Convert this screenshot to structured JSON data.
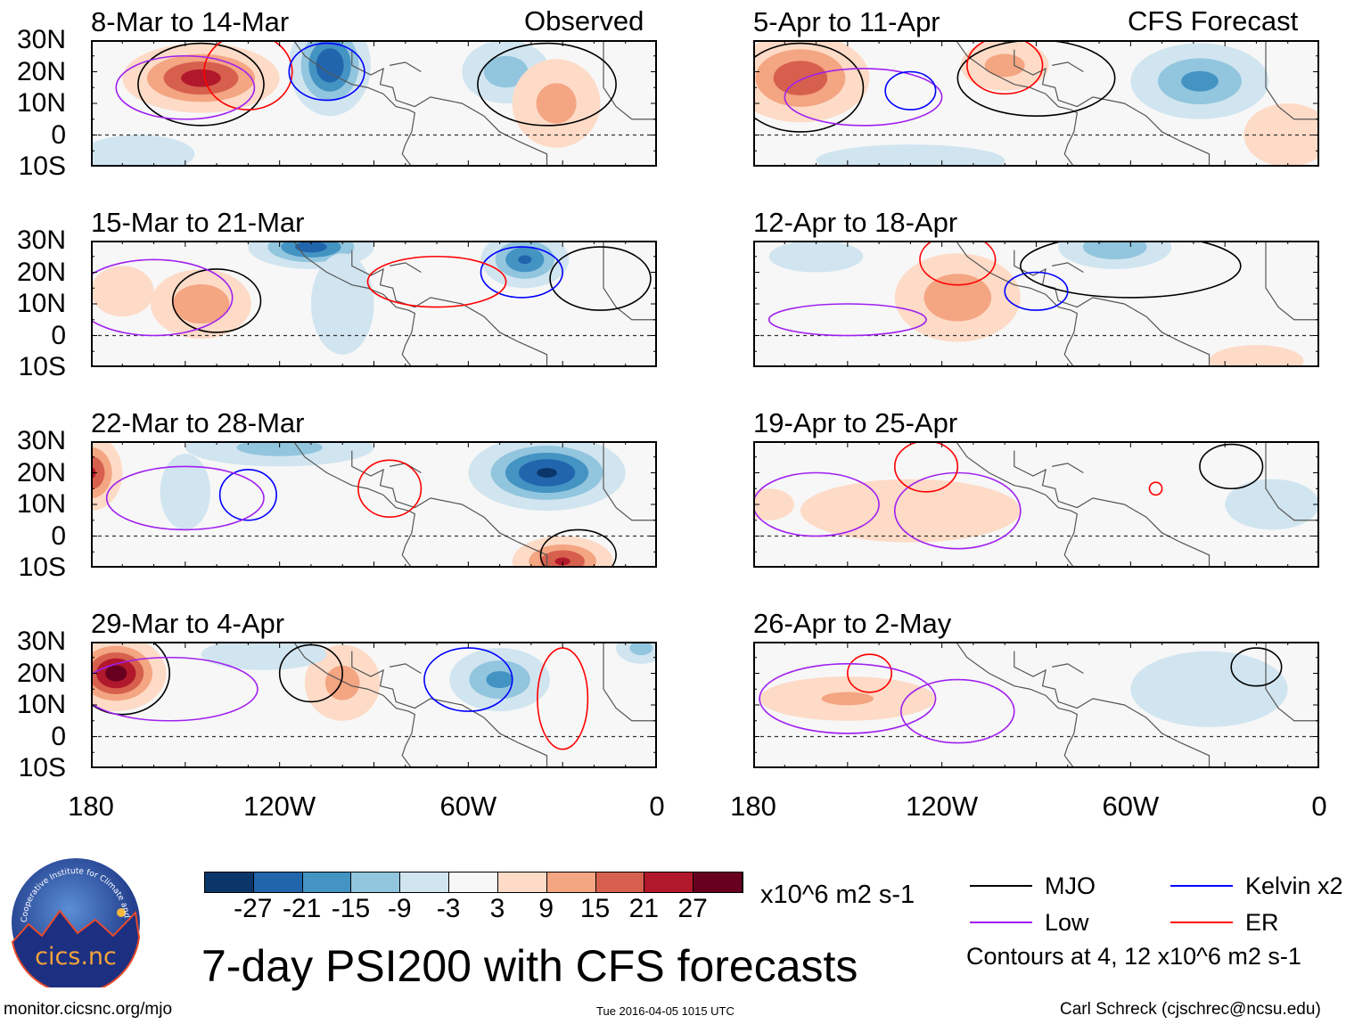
{
  "header": {
    "observed_label": "Observed",
    "forecast_label": "CFS Forecast"
  },
  "axes": {
    "lat_labels": [
      "30N",
      "20N",
      "10N",
      "0",
      "10S"
    ],
    "lat_values": [
      30,
      20,
      10,
      0,
      -10
    ],
    "lon_labels": [
      "180",
      "120W",
      "60W",
      "0"
    ],
    "lon_values": [
      -180,
      -120,
      -60,
      0
    ]
  },
  "colorbar": {
    "colors": [
      "#0b3669",
      "#2166ac",
      "#4393c3",
      "#92c5de",
      "#d1e5f0",
      "#f7f7f7",
      "#fddbc7",
      "#f4a582",
      "#d6604d",
      "#b2182b",
      "#67001f"
    ],
    "labels": [
      "-27",
      "-21",
      "-15",
      "-9",
      "-3",
      "3",
      "9",
      "15",
      "21",
      "27"
    ],
    "units": "x10^6 m2 s-1"
  },
  "legend": {
    "items": [
      {
        "label": "MJO",
        "color": "#000000"
      },
      {
        "label": "Kelvin x2",
        "color": "#0000ff"
      },
      {
        "label": "Low",
        "color": "#a020f0"
      },
      {
        "label": "ER",
        "color": "#ff0000"
      }
    ],
    "note": "Contours at 4, 12 x10^6 m2 s-1"
  },
  "footer": {
    "title": "7-day PSI200 with CFS forecasts",
    "url": "monitor.cicsnc.org/mjo",
    "timestamp": "Tue 2016-04-05 1015 UTC",
    "author": "Carl Schreck (cjschrec@ncsu.edu)",
    "logo_text": "cics.nc",
    "logo_ring": "Cooperative Institute for Climate and Satellites"
  },
  "chart_data": [
    {
      "type": "heatmap",
      "title": "8-Mar to 14-Mar",
      "kind": "Observed",
      "anomalies": [
        {
          "lon": -145,
          "lat": 18,
          "rx": 25,
          "ry": 11,
          "v": 24
        },
        {
          "lon": -104,
          "lat": 22,
          "rx": 13,
          "ry": 16,
          "v": -27
        },
        {
          "lon": -48,
          "lat": 20,
          "rx": 14,
          "ry": 10,
          "v": -13
        },
        {
          "lon": -32,
          "lat": 10,
          "rx": 14,
          "ry": 14,
          "v": 12
        },
        {
          "lon": -165,
          "lat": -6,
          "rx": 18,
          "ry": 6,
          "v": -6
        }
      ],
      "contours": [
        {
          "t": "MJO",
          "lon": -145,
          "lat": 16,
          "rx": 20,
          "ry": 13
        },
        {
          "t": "MJO",
          "lon": -35,
          "lat": 16,
          "rx": 22,
          "ry": 13
        },
        {
          "t": "ER",
          "lon": -130,
          "lat": 20,
          "rx": 14,
          "ry": 12
        },
        {
          "t": "Low",
          "lon": -150,
          "lat": 15,
          "rx": 22,
          "ry": 10
        },
        {
          "t": "Kelvin",
          "lon": -105,
          "lat": 20,
          "rx": 12,
          "ry": 9
        }
      ]
    },
    {
      "type": "heatmap",
      "title": "5-Apr to 11-Apr",
      "kind": "CFS Forecast",
      "anomalies": [
        {
          "lon": -165,
          "lat": 18,
          "rx": 22,
          "ry": 14,
          "v": 20
        },
        {
          "lon": -100,
          "lat": 22,
          "rx": 14,
          "ry": 8,
          "v": 12
        },
        {
          "lon": -38,
          "lat": 17,
          "rx": 22,
          "ry": 12,
          "v": -17
        },
        {
          "lon": -130,
          "lat": -8,
          "rx": 30,
          "ry": 5,
          "v": -5
        },
        {
          "lon": -10,
          "lat": 0,
          "rx": 14,
          "ry": 10,
          "v": 6
        }
      ],
      "contours": [
        {
          "t": "MJO",
          "lon": -165,
          "lat": 15,
          "rx": 20,
          "ry": 14
        },
        {
          "t": "MJO",
          "lon": -90,
          "lat": 18,
          "rx": 25,
          "ry": 12
        },
        {
          "t": "Low",
          "lon": -145,
          "lat": 12,
          "rx": 25,
          "ry": 9
        },
        {
          "t": "Kelvin",
          "lon": -130,
          "lat": 14,
          "rx": 8,
          "ry": 6
        },
        {
          "t": "ER",
          "lon": -100,
          "lat": 22,
          "rx": 12,
          "ry": 9
        }
      ]
    },
    {
      "type": "heatmap",
      "title": "15-Mar to 21-Mar",
      "kind": "Observed",
      "anomalies": [
        {
          "lon": -145,
          "lat": 10,
          "rx": 16,
          "ry": 11,
          "v": 15
        },
        {
          "lon": -110,
          "lat": 28,
          "rx": 20,
          "ry": 7,
          "v": -24
        },
        {
          "lon": -42,
          "lat": 24,
          "rx": 14,
          "ry": 9,
          "v": -22
        },
        {
          "lon": -100,
          "lat": 10,
          "rx": 10,
          "ry": 16,
          "v": -8
        },
        {
          "lon": -170,
          "lat": 14,
          "rx": 10,
          "ry": 8,
          "v": 6
        }
      ],
      "contours": [
        {
          "t": "MJO",
          "lon": -140,
          "lat": 11,
          "rx": 14,
          "ry": 10
        },
        {
          "t": "MJO",
          "lon": -18,
          "lat": 18,
          "rx": 16,
          "ry": 10
        },
        {
          "t": "Kelvin",
          "lon": -43,
          "lat": 20,
          "rx": 13,
          "ry": 8
        },
        {
          "t": "ER",
          "lon": -70,
          "lat": 17,
          "rx": 22,
          "ry": 8
        },
        {
          "t": "Low",
          "lon": -160,
          "lat": 12,
          "rx": 25,
          "ry": 12
        }
      ]
    },
    {
      "type": "heatmap",
      "title": "12-Apr to 18-Apr",
      "kind": "CFS Forecast",
      "anomalies": [
        {
          "lon": -115,
          "lat": 12,
          "rx": 20,
          "ry": 14,
          "v": 14
        },
        {
          "lon": -65,
          "lat": 28,
          "rx": 18,
          "ry": 7,
          "v": -15
        },
        {
          "lon": -160,
          "lat": 25,
          "rx": 15,
          "ry": 5,
          "v": -5
        },
        {
          "lon": -20,
          "lat": -8,
          "rx": 15,
          "ry": 5,
          "v": 8
        }
      ],
      "contours": [
        {
          "t": "MJO",
          "lon": -60,
          "lat": 22,
          "rx": 35,
          "ry": 10
        },
        {
          "t": "ER",
          "lon": -115,
          "lat": 24,
          "rx": 12,
          "ry": 8
        },
        {
          "t": "Kelvin",
          "lon": -90,
          "lat": 14,
          "rx": 10,
          "ry": 6
        },
        {
          "t": "Low",
          "lon": -150,
          "lat": 5,
          "rx": 25,
          "ry": 5
        }
      ]
    },
    {
      "type": "heatmap",
      "title": "22-Mar to 28-Mar",
      "kind": "Observed",
      "anomalies": [
        {
          "lon": -180,
          "lat": 20,
          "rx": 10,
          "ry": 12,
          "v": 22
        },
        {
          "lon": -35,
          "lat": 20,
          "rx": 25,
          "ry": 12,
          "v": -28
        },
        {
          "lon": -120,
          "lat": 28,
          "rx": 30,
          "ry": 6,
          "v": -12
        },
        {
          "lon": -30,
          "lat": -8,
          "rx": 16,
          "ry": 8,
          "v": 22
        },
        {
          "lon": -150,
          "lat": 14,
          "rx": 8,
          "ry": 12,
          "v": -7
        }
      ],
      "contours": [
        {
          "t": "Kelvin",
          "lon": -130,
          "lat": 13,
          "rx": 9,
          "ry": 8
        },
        {
          "t": "ER",
          "lon": -85,
          "lat": 15,
          "rx": 10,
          "ry": 9
        },
        {
          "t": "MJO",
          "lon": -25,
          "lat": -6,
          "rx": 12,
          "ry": 8
        },
        {
          "t": "Low",
          "lon": -150,
          "lat": 12,
          "rx": 25,
          "ry": 10
        }
      ]
    },
    {
      "type": "heatmap",
      "title": "19-Apr to 25-Apr",
      "kind": "CFS Forecast",
      "anomalies": [
        {
          "lon": -130,
          "lat": 8,
          "rx": 35,
          "ry": 10,
          "v": 6
        },
        {
          "lon": -175,
          "lat": 10,
          "rx": 8,
          "ry": 5,
          "v": 8
        },
        {
          "lon": -15,
          "lat": 10,
          "rx": 15,
          "ry": 8,
          "v": -5
        }
      ],
      "contours": [
        {
          "t": "Low",
          "lon": -160,
          "lat": 10,
          "rx": 20,
          "ry": 10
        },
        {
          "t": "Low",
          "lon": -115,
          "lat": 8,
          "rx": 20,
          "ry": 12
        },
        {
          "t": "ER",
          "lon": -125,
          "lat": 22,
          "rx": 10,
          "ry": 8
        },
        {
          "t": "MJO",
          "lon": -28,
          "lat": 22,
          "rx": 10,
          "ry": 7
        },
        {
          "t": "ER",
          "lon": -52,
          "lat": 15,
          "rx": 2,
          "ry": 2
        }
      ]
    },
    {
      "type": "heatmap",
      "title": "29-Mar to 4-Apr",
      "kind": "Observed",
      "anomalies": [
        {
          "lon": -172,
          "lat": 20,
          "rx": 16,
          "ry": 12,
          "v": 30
        },
        {
          "lon": -100,
          "lat": 17,
          "rx": 12,
          "ry": 12,
          "v": 12
        },
        {
          "lon": -50,
          "lat": 18,
          "rx": 16,
          "ry": 10,
          "v": -17
        },
        {
          "lon": -125,
          "lat": 26,
          "rx": 20,
          "ry": 5,
          "v": -8
        },
        {
          "lon": -5,
          "lat": 28,
          "rx": 8,
          "ry": 5,
          "v": -12
        }
      ],
      "contours": [
        {
          "t": "MJO",
          "lon": -170,
          "lat": 20,
          "rx": 15,
          "ry": 13
        },
        {
          "t": "MJO",
          "lon": -110,
          "lat": 20,
          "rx": 10,
          "ry": 9
        },
        {
          "t": "Kelvin",
          "lon": -60,
          "lat": 18,
          "rx": 14,
          "ry": 10
        },
        {
          "t": "ER",
          "lon": -30,
          "lat": 12,
          "rx": 8,
          "ry": 16
        },
        {
          "t": "Low",
          "lon": -155,
          "lat": 15,
          "rx": 28,
          "ry": 10
        }
      ]
    },
    {
      "type": "heatmap",
      "title": "26-Apr to 2-May",
      "kind": "CFS Forecast",
      "anomalies": [
        {
          "lon": -150,
          "lat": 12,
          "rx": 28,
          "ry": 7,
          "v": 10
        },
        {
          "lon": -35,
          "lat": 15,
          "rx": 25,
          "ry": 12,
          "v": -4
        }
      ],
      "contours": [
        {
          "t": "ER",
          "lon": -143,
          "lat": 20,
          "rx": 7,
          "ry": 6
        },
        {
          "t": "Low",
          "lon": -150,
          "lat": 12,
          "rx": 28,
          "ry": 11
        },
        {
          "t": "Low",
          "lon": -115,
          "lat": 8,
          "rx": 18,
          "ry": 10
        },
        {
          "t": "MJO",
          "lon": -20,
          "lat": 22,
          "rx": 8,
          "ry": 6
        }
      ]
    }
  ]
}
